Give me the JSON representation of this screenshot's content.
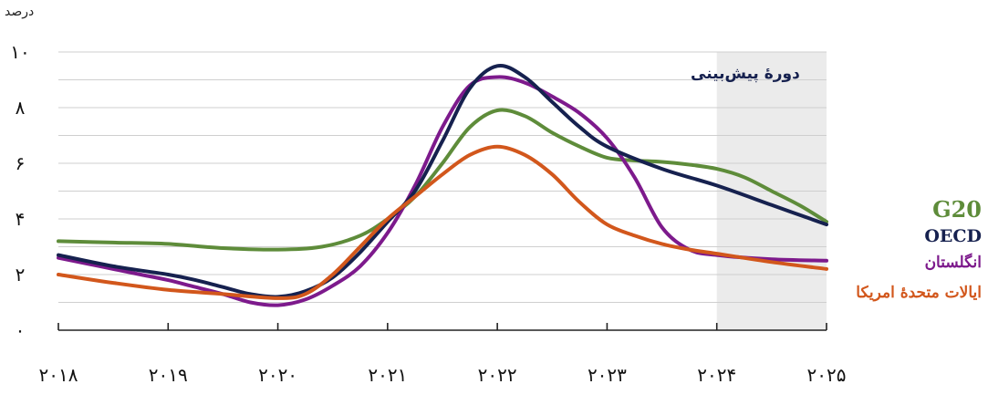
{
  "chart_data": {
    "type": "line",
    "y_unit_label": "درصد",
    "forecast_label": "دورهٔ پیش‌بینی",
    "forecast_period": [
      2024,
      2025
    ],
    "x_tick_labels": [
      "۲۰۱۸",
      "۲۰۱۹",
      "۲۰۲۰",
      "۲۰۲۱",
      "۲۰۲۲",
      "۲۰۲۳",
      "۲۰۲۴",
      "۲۰۲۵"
    ],
    "y_tick_labels": [
      "۰",
      "۲",
      "۴",
      "۶",
      "۸",
      "۱۰"
    ],
    "xlim": [
      2018,
      2025
    ],
    "ylim": [
      0,
      10
    ],
    "y_ticks": [
      0,
      2,
      4,
      6,
      8,
      10
    ],
    "grid": true,
    "series": [
      {
        "name": "G20",
        "color": "#5e8c3a",
        "points": [
          [
            2018,
            3.2
          ],
          [
            2018.5,
            3.15
          ],
          [
            2019,
            3.1
          ],
          [
            2019.5,
            2.95
          ],
          [
            2020,
            2.9
          ],
          [
            2020.4,
            3.0
          ],
          [
            2020.75,
            3.4
          ],
          [
            2021,
            4.0
          ],
          [
            2021.25,
            4.8
          ],
          [
            2021.5,
            6.0
          ],
          [
            2021.75,
            7.3
          ],
          [
            2022,
            7.9
          ],
          [
            2022.25,
            7.7
          ],
          [
            2022.5,
            7.1
          ],
          [
            2022.75,
            6.6
          ],
          [
            2023,
            6.2
          ],
          [
            2023.25,
            6.1
          ],
          [
            2023.5,
            6.05
          ],
          [
            2023.75,
            5.95
          ],
          [
            2024,
            5.8
          ],
          [
            2024.25,
            5.5
          ],
          [
            2024.5,
            5.0
          ],
          [
            2024.75,
            4.5
          ],
          [
            2025,
            3.9
          ]
        ]
      },
      {
        "name": "OECD",
        "color": "#16214f",
        "points": [
          [
            2018,
            2.7
          ],
          [
            2018.5,
            2.3
          ],
          [
            2019,
            2.0
          ],
          [
            2019.25,
            1.8
          ],
          [
            2019.5,
            1.55
          ],
          [
            2019.75,
            1.3
          ],
          [
            2020,
            1.2
          ],
          [
            2020.25,
            1.4
          ],
          [
            2020.5,
            1.9
          ],
          [
            2020.75,
            2.8
          ],
          [
            2021,
            3.9
          ],
          [
            2021.25,
            5.0
          ],
          [
            2021.5,
            6.8
          ],
          [
            2021.75,
            8.7
          ],
          [
            2022,
            9.5
          ],
          [
            2022.25,
            9.1
          ],
          [
            2022.5,
            8.2
          ],
          [
            2022.75,
            7.3
          ],
          [
            2023,
            6.6
          ],
          [
            2023.5,
            5.8
          ],
          [
            2024,
            5.2
          ],
          [
            2024.5,
            4.5
          ],
          [
            2025,
            3.8
          ]
        ]
      },
      {
        "name": "انگلستان",
        "color": "#7d1a8c",
        "points": [
          [
            2018,
            2.6
          ],
          [
            2018.25,
            2.4
          ],
          [
            2018.5,
            2.2
          ],
          [
            2018.75,
            2.0
          ],
          [
            2019,
            1.8
          ],
          [
            2019.25,
            1.55
          ],
          [
            2019.5,
            1.3
          ],
          [
            2019.75,
            1.0
          ],
          [
            2020,
            0.9
          ],
          [
            2020.25,
            1.1
          ],
          [
            2020.5,
            1.6
          ],
          [
            2020.75,
            2.3
          ],
          [
            2021,
            3.5
          ],
          [
            2021.25,
            5.2
          ],
          [
            2021.5,
            7.3
          ],
          [
            2021.75,
            8.8
          ],
          [
            2022,
            9.1
          ],
          [
            2022.25,
            8.9
          ],
          [
            2022.5,
            8.4
          ],
          [
            2022.75,
            7.8
          ],
          [
            2023,
            6.9
          ],
          [
            2023.25,
            5.5
          ],
          [
            2023.5,
            3.7
          ],
          [
            2023.75,
            2.9
          ],
          [
            2024,
            2.7
          ],
          [
            2024.5,
            2.55
          ],
          [
            2025,
            2.5
          ]
        ]
      },
      {
        "name": "ایالات متحدهٔ امریکا",
        "color": "#d2571c",
        "points": [
          [
            2018,
            2.0
          ],
          [
            2018.5,
            1.7
          ],
          [
            2019,
            1.45
          ],
          [
            2019.5,
            1.3
          ],
          [
            2020,
            1.15
          ],
          [
            2020.25,
            1.3
          ],
          [
            2020.5,
            2.0
          ],
          [
            2020.75,
            3.0
          ],
          [
            2021,
            4.0
          ],
          [
            2021.25,
            4.8
          ],
          [
            2021.5,
            5.6
          ],
          [
            2021.75,
            6.3
          ],
          [
            2022,
            6.6
          ],
          [
            2022.25,
            6.3
          ],
          [
            2022.5,
            5.6
          ],
          [
            2022.75,
            4.6
          ],
          [
            2023,
            3.8
          ],
          [
            2023.25,
            3.4
          ],
          [
            2023.5,
            3.1
          ],
          [
            2023.75,
            2.9
          ],
          [
            2024,
            2.75
          ],
          [
            2024.5,
            2.45
          ],
          [
            2025,
            2.2
          ]
        ]
      }
    ]
  }
}
